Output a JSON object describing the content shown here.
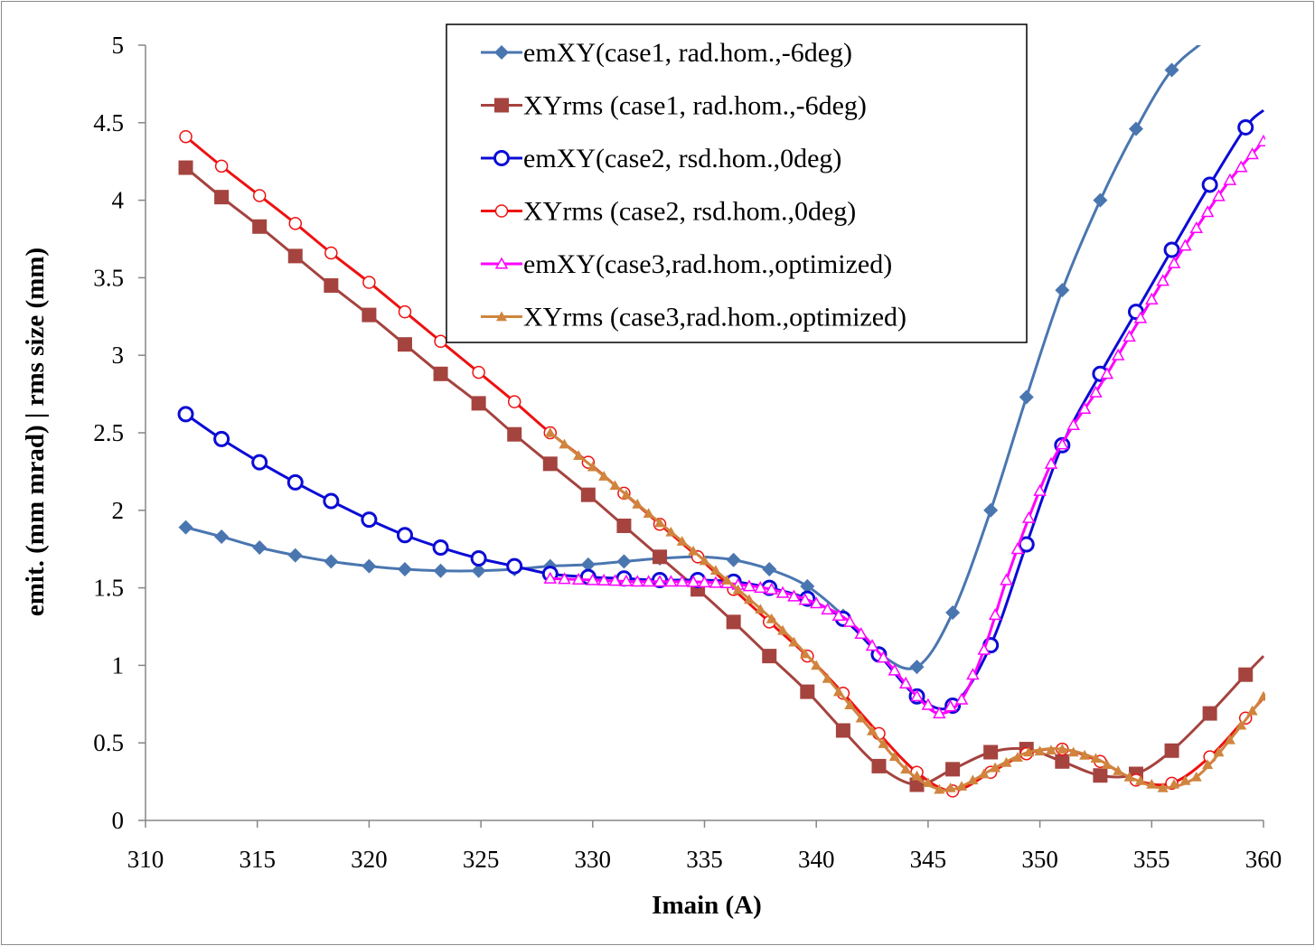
{
  "chart_data": {
    "type": "line",
    "xlabel": "Imain (A)",
    "ylabel": "emit. (mm mrad) | rms size (mm)",
    "xlim": [
      310,
      360
    ],
    "ylim": [
      0,
      5
    ],
    "xticks": [
      "310",
      "315",
      "320",
      "325",
      "330",
      "335",
      "340",
      "345",
      "350",
      "355",
      "360"
    ],
    "yticks": [
      "0",
      "0.5",
      "1",
      "1.5",
      "2",
      "2.5",
      "3",
      "3.5",
      "4",
      "4.5",
      "5"
    ],
    "grid": false,
    "legend_position": "top-center",
    "series": [
      {
        "name": "emXY(case1, rad.hom.,-6deg)",
        "color": "#4a76b0",
        "marker": "diamond",
        "line_width": 3,
        "x": [
          311.8,
          313.4,
          315.1,
          316.7,
          318.3,
          320.0,
          321.6,
          323.2,
          324.9,
          326.5,
          328.1,
          329.8,
          331.4,
          333.0,
          334.7,
          336.3,
          337.9,
          339.6,
          341.2,
          342.8,
          344.5,
          346.1,
          347.8,
          349.4,
          351.0,
          352.7,
          354.3,
          355.9,
          357.6,
          360.0
        ],
        "y": [
          1.89,
          1.83,
          1.76,
          1.71,
          1.67,
          1.64,
          1.62,
          1.61,
          1.61,
          1.62,
          1.64,
          1.65,
          1.67,
          1.69,
          1.7,
          1.68,
          1.62,
          1.51,
          1.32,
          1.08,
          0.99,
          1.34,
          2.0,
          2.73,
          3.42,
          4.0,
          4.46,
          4.84,
          5.06,
          5.4
        ],
        "marker_points": 29
      },
      {
        "name": "XYrms (case1, rad.hom.,-6deg)",
        "color": "#a5433f",
        "marker": "square",
        "line_width": 3,
        "x": [
          311.8,
          313.4,
          315.1,
          316.7,
          318.3,
          320.0,
          321.6,
          323.2,
          324.9,
          326.5,
          328.1,
          329.8,
          331.4,
          333.0,
          334.7,
          336.3,
          337.9,
          339.6,
          341.2,
          342.8,
          344.5,
          346.1,
          347.8,
          349.4,
          351.0,
          352.7,
          354.3,
          355.9,
          357.6,
          359.2,
          360.0
        ],
        "y": [
          4.21,
          4.02,
          3.83,
          3.64,
          3.45,
          3.26,
          3.07,
          2.88,
          2.69,
          2.49,
          2.3,
          2.1,
          1.9,
          1.7,
          1.49,
          1.28,
          1.06,
          0.83,
          0.58,
          0.35,
          0.23,
          0.33,
          0.44,
          0.46,
          0.38,
          0.29,
          0.3,
          0.45,
          0.69,
          0.94,
          1.06
        ],
        "marker_points": 30
      },
      {
        "name": "emXY(case2, rsd.hom.,0deg)",
        "color": "#0b0bd6",
        "marker": "circle-open",
        "line_width": 3,
        "x": [
          311.8,
          313.4,
          315.1,
          316.7,
          318.3,
          320.0,
          321.6,
          323.2,
          324.9,
          326.5,
          328.1,
          329.8,
          331.4,
          333.0,
          334.7,
          336.3,
          337.9,
          339.6,
          341.2,
          342.8,
          344.5,
          346.1,
          347.8,
          349.4,
          351.0,
          352.7,
          354.3,
          355.9,
          357.6,
          359.2,
          360.0
        ],
        "y": [
          2.62,
          2.46,
          2.31,
          2.18,
          2.06,
          1.94,
          1.84,
          1.76,
          1.69,
          1.64,
          1.59,
          1.57,
          1.56,
          1.55,
          1.55,
          1.54,
          1.5,
          1.43,
          1.3,
          1.07,
          0.8,
          0.74,
          1.13,
          1.78,
          2.42,
          2.88,
          3.28,
          3.68,
          4.1,
          4.47,
          4.58
        ],
        "marker_points": 30
      },
      {
        "name": "XYrms (case2, rsd.hom.,0deg)",
        "color": "#ee1111",
        "marker": "circle-open-small",
        "line_width": 3,
        "x": [
          311.8,
          313.4,
          315.1,
          316.7,
          318.3,
          320.0,
          321.6,
          323.2,
          324.9,
          326.5,
          328.1,
          329.8,
          331.4,
          333.0,
          334.7,
          336.3,
          337.9,
          339.6,
          341.2,
          342.8,
          344.5,
          346.1,
          347.8,
          349.4,
          351.0,
          352.7,
          354.3,
          355.9,
          357.6,
          359.2,
          360.0
        ],
        "y": [
          4.41,
          4.22,
          4.03,
          3.85,
          3.66,
          3.47,
          3.28,
          3.09,
          2.89,
          2.7,
          2.5,
          2.31,
          2.11,
          1.91,
          1.7,
          1.49,
          1.28,
          1.06,
          0.82,
          0.56,
          0.31,
          0.19,
          0.31,
          0.43,
          0.46,
          0.38,
          0.26,
          0.24,
          0.41,
          0.66,
          0.79
        ],
        "marker_points": 30
      },
      {
        "name": "emXY(case3,rad.hom.,optimized)",
        "color": "#ff00ff",
        "marker": "triangle-open",
        "line_width": 3,
        "x": [
          328.1,
          330.0,
          332.0,
          334.0,
          336.0,
          338.0,
          340.0,
          341.5,
          343.0,
          344.5,
          345.5,
          346.5,
          347.5,
          348.5,
          349.5,
          350.5,
          351.5,
          352.5,
          354.0,
          355.5,
          357.0,
          358.5,
          360.0
        ],
        "y": [
          1.56,
          1.55,
          1.54,
          1.54,
          1.53,
          1.49,
          1.4,
          1.28,
          1.05,
          0.8,
          0.69,
          0.78,
          1.1,
          1.55,
          1.95,
          2.3,
          2.55,
          2.76,
          3.12,
          3.48,
          3.82,
          4.13,
          4.38
        ]
      },
      {
        "name": "XYrms (case3,rad.hom.,optimized)",
        "color": "#d0843e",
        "marker": "triangle-filled",
        "line_width": 3,
        "x": [
          328.1,
          330.0,
          332.0,
          334.0,
          336.0,
          338.0,
          340.0,
          342.0,
          344.0,
          345.5,
          346.5,
          348.0,
          349.5,
          351.0,
          352.5,
          354.0,
          355.5,
          357.0,
          358.5,
          360.0
        ],
        "y": [
          2.5,
          2.28,
          2.04,
          1.8,
          1.55,
          1.3,
          1.0,
          0.66,
          0.33,
          0.2,
          0.22,
          0.34,
          0.44,
          0.46,
          0.4,
          0.28,
          0.21,
          0.28,
          0.52,
          0.8
        ]
      }
    ]
  }
}
